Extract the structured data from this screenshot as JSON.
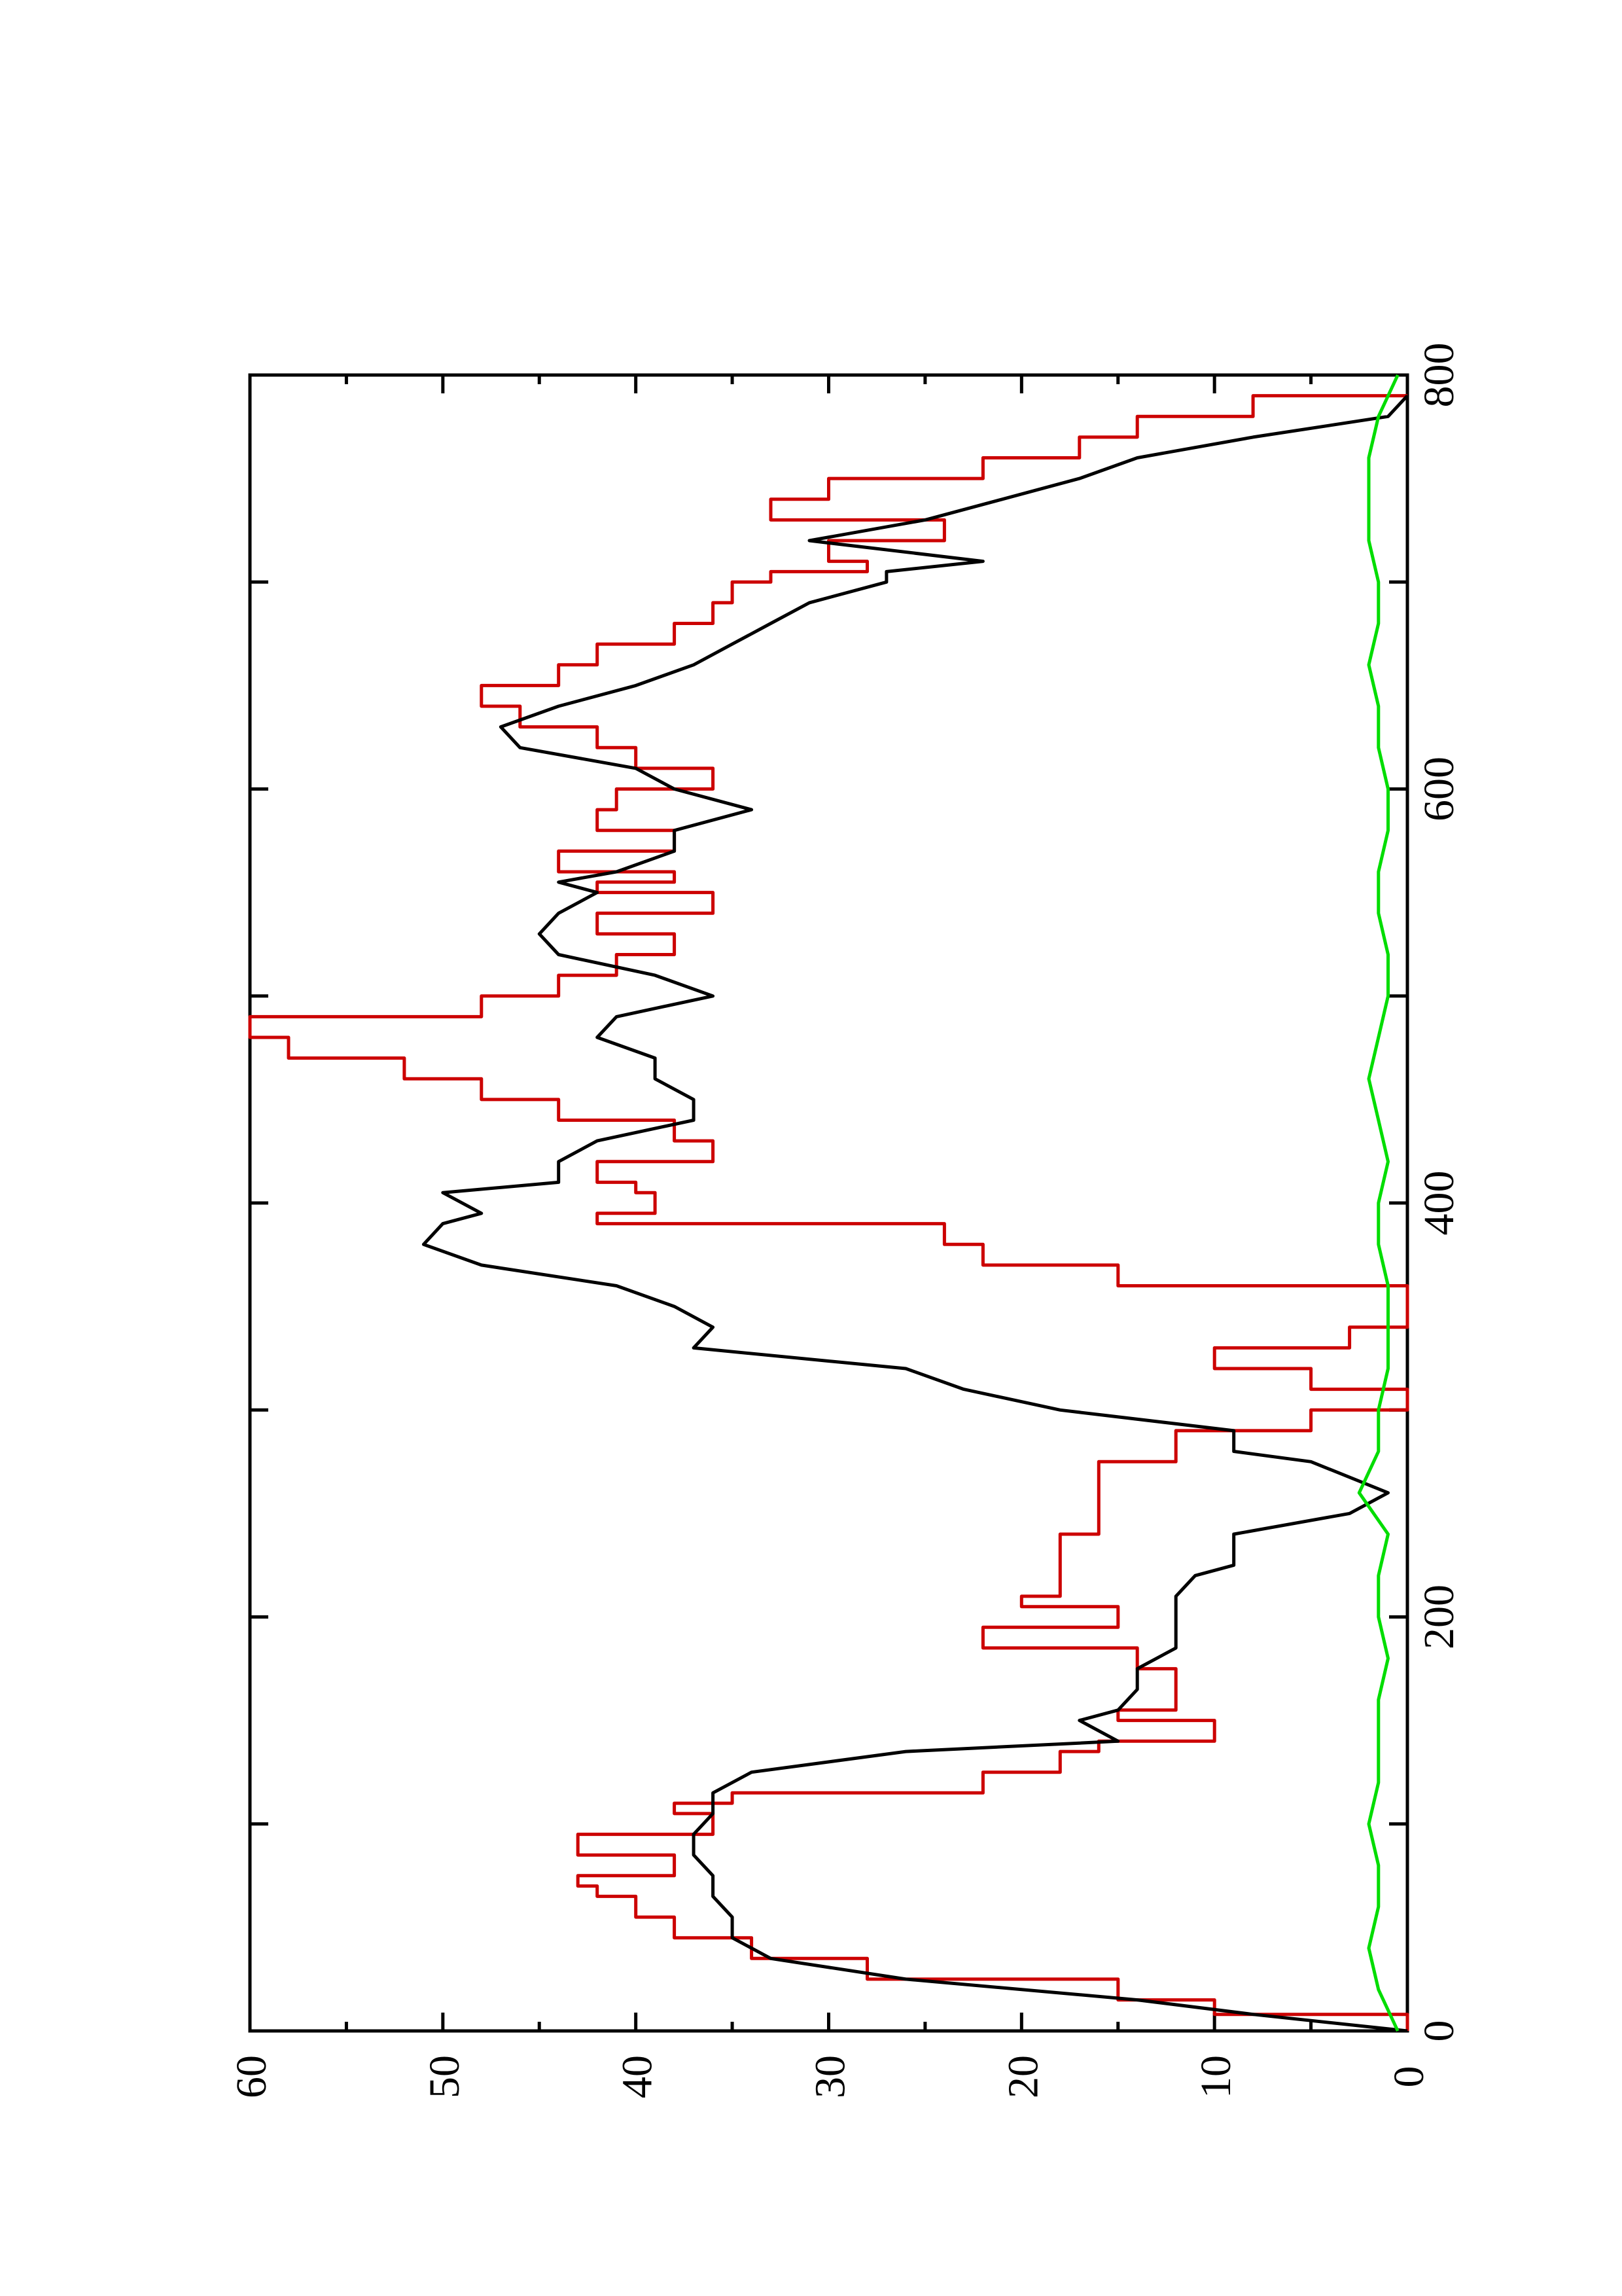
{
  "chart_data": {
    "type": "line",
    "orientation": "rotated-90-ccw",
    "xlim": [
      0,
      800
    ],
    "ylim": [
      0,
      60
    ],
    "x_ticks": [
      "0",
      "200",
      "400",
      "600",
      "800"
    ],
    "y_ticks": [
      "0",
      "10",
      "20",
      "30",
      "40",
      "50",
      "60"
    ],
    "grid": false,
    "legend": "none",
    "series": [
      {
        "color": "#cc0000",
        "x": [
          0,
          8,
          15,
          25,
          35,
          45,
          55,
          65,
          70,
          75,
          85,
          90,
          95,
          105,
          110,
          115,
          125,
          135,
          140,
          150,
          155,
          165,
          175,
          185,
          195,
          205,
          210,
          220,
          225,
          240,
          250,
          260,
          275,
          280,
          290,
          300,
          310,
          320,
          330,
          340,
          350,
          360,
          370,
          380,
          390,
          395,
          405,
          410,
          420,
          430,
          440,
          450,
          460,
          470,
          480,
          490,
          500,
          510,
          520,
          530,
          540,
          550,
          555,
          560,
          570,
          580,
          590,
          600,
          610,
          620,
          630,
          640,
          650,
          660,
          670,
          680,
          690,
          700,
          705,
          710,
          720,
          730,
          740,
          750,
          760,
          770,
          780,
          790
        ],
        "y": [
          0,
          10,
          15,
          28,
          34,
          38,
          40,
          42,
          43,
          38,
          43,
          43,
          36,
          38,
          35,
          22,
          18,
          16,
          10,
          15,
          12,
          12,
          14,
          22,
          15,
          20,
          18,
          18,
          18,
          16,
          16,
          16,
          12,
          12,
          5,
          0,
          5,
          10,
          3,
          0,
          0,
          15,
          22,
          24,
          42,
          39,
          40,
          42,
          36,
          38,
          44,
          48,
          52,
          58,
          60,
          48,
          44,
          41,
          38,
          42,
          36,
          42,
          38,
          44,
          38,
          42,
          41,
          36,
          40,
          42,
          46,
          48,
          44,
          42,
          38,
          36,
          35,
          33,
          28,
          30,
          24,
          33,
          30,
          22,
          17,
          14,
          8,
          0
        ]
      },
      {
        "color": "#000000",
        "x": [
          0,
          8,
          15,
          25,
          35,
          45,
          55,
          65,
          75,
          85,
          95,
          105,
          115,
          125,
          135,
          140,
          150,
          155,
          165,
          175,
          185,
          195,
          205,
          210,
          220,
          225,
          240,
          250,
          260,
          275,
          280,
          290,
          300,
          310,
          320,
          330,
          340,
          350,
          360,
          370,
          380,
          390,
          395,
          405,
          410,
          420,
          430,
          440,
          450,
          460,
          470,
          480,
          490,
          500,
          510,
          520,
          530,
          540,
          550,
          555,
          560,
          570,
          580,
          590,
          600,
          610,
          620,
          630,
          640,
          650,
          660,
          670,
          680,
          690,
          700,
          705,
          710,
          720,
          730,
          740,
          750,
          760,
          770,
          780,
          790
        ],
        "y": [
          0,
          8,
          14,
          26,
          33,
          35,
          35,
          36,
          36,
          37,
          37,
          36,
          36,
          34,
          26,
          15,
          17,
          15,
          14,
          14,
          12,
          12,
          12,
          12,
          11,
          9,
          9,
          3,
          1,
          5,
          9,
          9,
          18,
          23,
          26,
          37,
          36,
          38,
          41,
          48,
          51,
          50,
          48,
          50,
          44,
          44,
          42,
          37,
          37,
          39,
          39,
          42,
          41,
          36,
          39,
          44,
          45,
          44,
          42,
          44,
          41,
          38,
          38,
          34,
          38,
          40,
          46,
          47,
          44,
          40,
          37,
          35,
          33,
          31,
          27,
          27,
          22,
          31,
          25,
          21,
          17,
          14,
          8,
          1,
          0
        ]
      },
      {
        "color": "#00dd00",
        "x": [
          0,
          20,
          40,
          60,
          80,
          100,
          120,
          140,
          160,
          180,
          200,
          220,
          240,
          260,
          280,
          300,
          320,
          340,
          360,
          380,
          400,
          420,
          440,
          460,
          480,
          500,
          520,
          540,
          560,
          580,
          600,
          620,
          640,
          660,
          680,
          700,
          720,
          740,
          760,
          780,
          800
        ],
        "y": [
          0.5,
          1.5,
          2.0,
          1.5,
          1.5,
          2.0,
          1.5,
          1.5,
          1.5,
          1.0,
          1.5,
          1.5,
          1.0,
          2.5,
          1.5,
          1.5,
          1.0,
          1.0,
          1.0,
          1.5,
          1.5,
          1.0,
          1.5,
          2.0,
          1.5,
          1.0,
          1.0,
          1.5,
          1.5,
          1.0,
          1.0,
          1.5,
          1.5,
          2.0,
          1.5,
          1.5,
          2.0,
          2.0,
          2.0,
          1.5,
          0.5
        ]
      }
    ]
  }
}
